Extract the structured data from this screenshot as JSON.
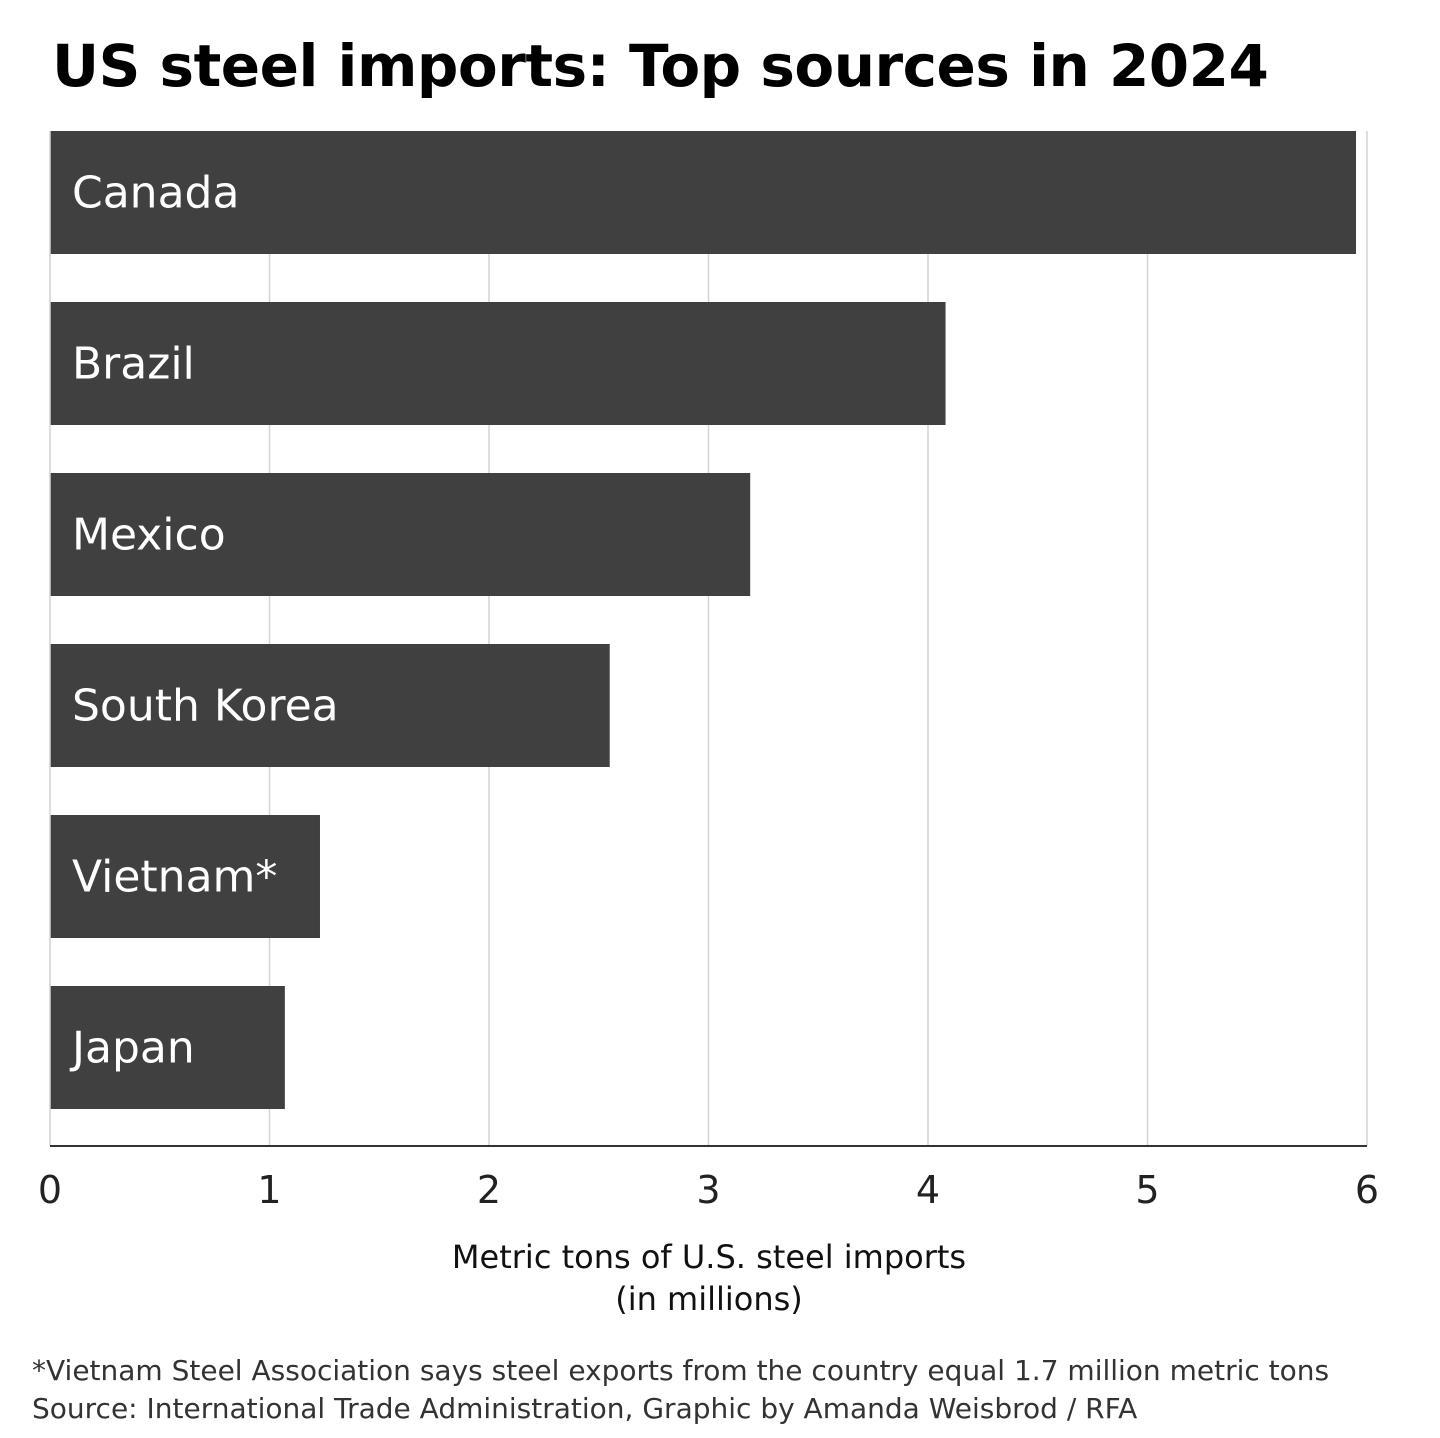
{
  "title": "US steel imports: Top sources in 2024",
  "chart_data": {
    "type": "bar",
    "orientation": "horizontal",
    "categories": [
      "Canada",
      "Brazil",
      "Mexico",
      "South Korea",
      "Vietnam*",
      "Japan"
    ],
    "values": [
      5.95,
      4.08,
      3.19,
      2.55,
      1.23,
      1.07
    ],
    "xlim": [
      0,
      6
    ],
    "xticks": [
      "0",
      "1",
      "2",
      "3",
      "4",
      "5",
      "6"
    ],
    "xlabel": [
      "Metric tons of U.S. steel imports",
      "(in millions)"
    ],
    "grid": "vertical",
    "bar_color": "#404040"
  },
  "footnote": "*Vietnam Steel Association says steel exports from the country equal 1.7 million metric tons",
  "source": "Source: International Trade Administration, Graphic by Amanda Weisbrod / RFA"
}
